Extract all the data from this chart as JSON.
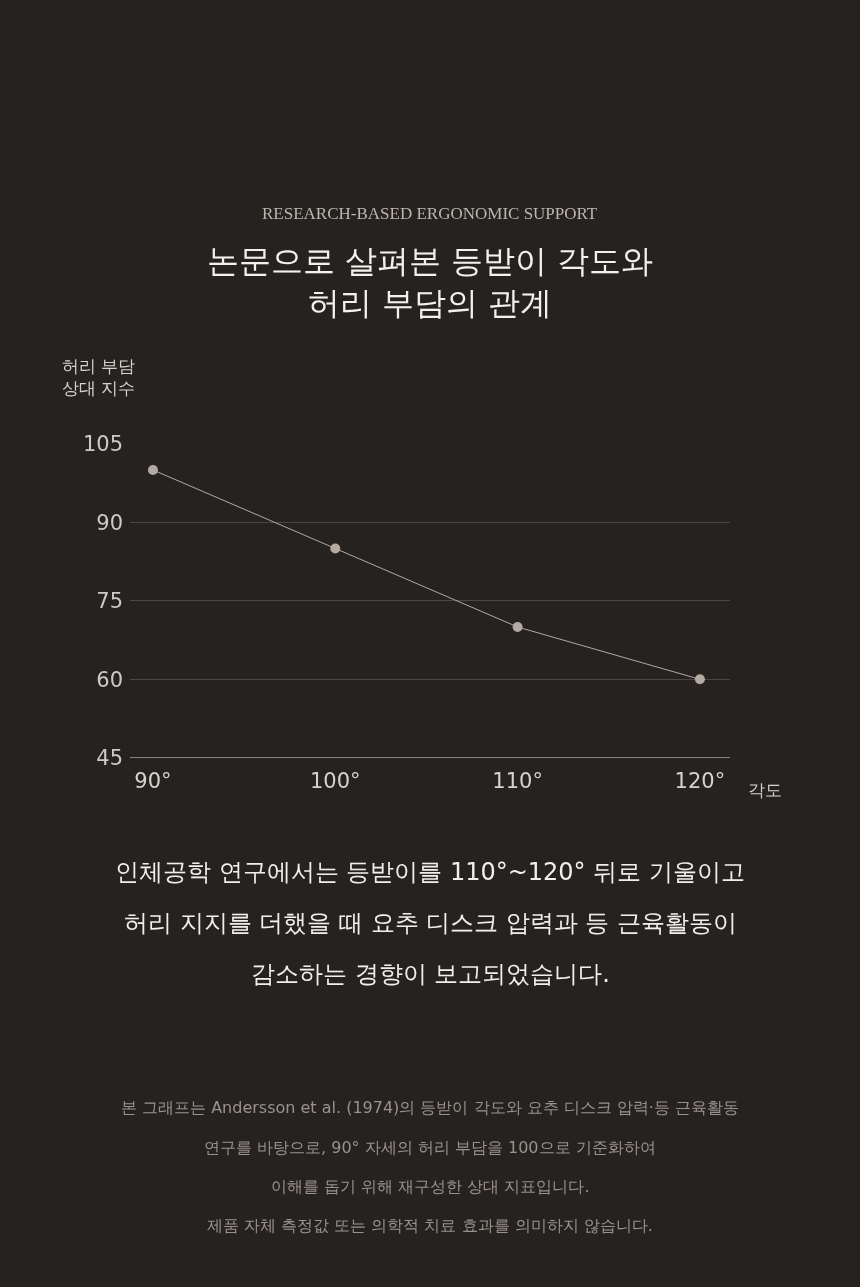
{
  "chart_data": {
    "type": "line",
    "subtitle": "RESEARCH-BASED ERGONOMIC SUPPORT",
    "title": "논문으로 살펴본 등받이 각도와\n허리 부담의 관계",
    "ylabel": "허리 부담\n상대 지수",
    "xlabel": "각도",
    "categories": [
      "90°",
      "100°",
      "110°",
      "120°"
    ],
    "series": [
      {
        "color": "#b3aaa2",
        "values": [
          100,
          85,
          70,
          60
        ]
      }
    ],
    "ylim": [
      45,
      105
    ],
    "yticks": [
      45,
      60,
      75,
      90,
      105
    ],
    "grid": "y",
    "marker": "circle",
    "line_style": "solid",
    "annotations": [
      "인체공학 연구에서는 등받이를 110°~120° 뒤로 기울이고\n허리 지지를 더했을 때 요추 디스크 압력과 등 근육활동이\n감소하는 경향이 보고되었습니다.",
      "본 그래프는 Andersson et al. (1974)의 등받이 각도와 요추 디스크 압력·등 근육활동\n연구를 바탕으로, 90° 자세의 허리 부담을 100으로 기준화하여\n이해를 돕기 위해 재구성한 상대 지표입니다.\n제품 자체 측정값 또는 의학적 치료 효과를 의미하지 않습니다."
    ]
  }
}
